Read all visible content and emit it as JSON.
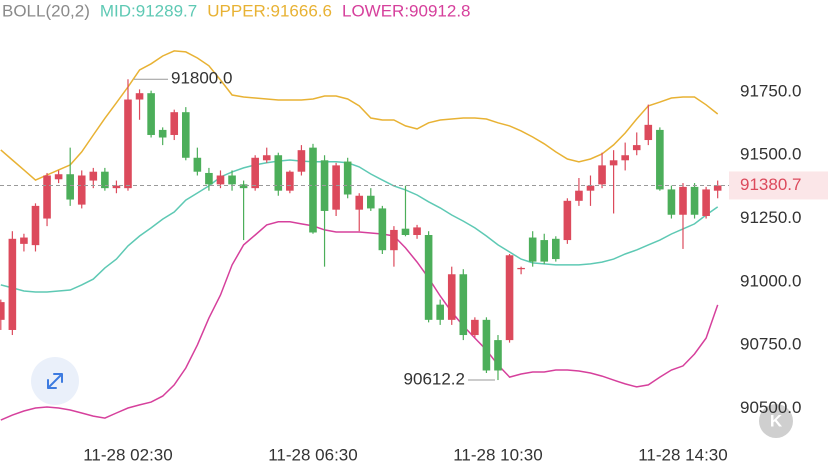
{
  "chart_data": {
    "type": "candlestick",
    "indicator": "BOLL(20,2)",
    "up_color": "#dc4a5c",
    "down_color": "#4cae5a",
    "categories": [
      null,
      null,
      null,
      null,
      null,
      null,
      null,
      null,
      null,
      null,
      null,
      "11-28 02:30",
      null,
      null,
      null,
      null,
      null,
      null,
      null,
      null,
      null,
      null,
      null,
      null,
      null,
      null,
      null,
      "11-28 06:30",
      null,
      null,
      null,
      null,
      null,
      null,
      null,
      null,
      null,
      null,
      null,
      null,
      null,
      null,
      null,
      "11-28 10:30",
      null,
      null,
      null,
      null,
      null,
      null,
      null,
      null,
      null,
      null,
      null,
      null,
      null,
      null,
      null,
      "11-28 14:30",
      null,
      null,
      null
    ],
    "ohlc": [
      [
        90850,
        90930,
        90810,
        90920
      ],
      [
        90810,
        91200,
        90790,
        91170
      ],
      [
        91150,
        91190,
        91120,
        91175
      ],
      [
        91145,
        91310,
        91120,
        91300
      ],
      [
        91250,
        91430,
        91220,
        91420
      ],
      [
        91405,
        91440,
        91390,
        91425
      ],
      [
        91425,
        91530,
        91300,
        91325
      ],
      [
        91305,
        91440,
        91290,
        91420
      ],
      [
        91400,
        91450,
        91370,
        91435
      ],
      [
        91435,
        91450,
        91360,
        91370
      ],
      [
        91370,
        91400,
        91350,
        91380
      ],
      [
        91370,
        91800,
        91360,
        91720
      ],
      [
        91720,
        91760,
        91640,
        91745
      ],
      [
        91745,
        91755,
        91570,
        91580
      ],
      [
        91600,
        91610,
        91540,
        91570
      ],
      [
        91580,
        91680,
        91560,
        91670
      ],
      [
        91670,
        91690,
        91480,
        91490
      ],
      [
        91490,
        91530,
        91420,
        91435
      ],
      [
        91430,
        91450,
        91360,
        91385
      ],
      [
        91385,
        91440,
        91370,
        91420
      ],
      [
        91420,
        91440,
        91360,
        91385
      ],
      [
        91385,
        91400,
        91165,
        91370
      ],
      [
        91370,
        91500,
        91360,
        91490
      ],
      [
        91480,
        91530,
        91470,
        91500
      ],
      [
        91500,
        91510,
        91340,
        91360
      ],
      [
        91360,
        91440,
        91350,
        91435
      ],
      [
        91435,
        91540,
        91420,
        91520
      ],
      [
        91530,
        91545,
        91190,
        91195
      ],
      [
        91480,
        91500,
        91060,
        91280
      ],
      [
        91285,
        91470,
        91260,
        91460
      ],
      [
        91475,
        91490,
        91330,
        91345
      ],
      [
        91285,
        91350,
        91200,
        91340
      ],
      [
        91340,
        91370,
        91280,
        91290
      ],
      [
        91290,
        91300,
        91110,
        91125
      ],
      [
        91125,
        91220,
        91060,
        91205
      ],
      [
        91210,
        91380,
        91180,
        91185
      ],
      [
        91185,
        91225,
        91170,
        91215
      ],
      [
        91185,
        91200,
        90840,
        90850
      ],
      [
        90910,
        90930,
        90830,
        90850
      ],
      [
        90850,
        91060,
        90830,
        91030
      ],
      [
        91030,
        91050,
        90770,
        90790
      ],
      [
        90790,
        90860,
        90780,
        90850
      ],
      [
        90850,
        90860,
        90640,
        90650
      ],
      [
        90770,
        90790,
        90612.2,
        90650
      ],
      [
        90770,
        91110,
        90760,
        91105
      ],
      [
        91050,
        91060,
        91030,
        91055
      ],
      [
        91175,
        91200,
        91060,
        91080
      ],
      [
        91165,
        91190,
        91070,
        91080
      ],
      [
        91170,
        91180,
        91080,
        91090
      ],
      [
        91165,
        91330,
        91150,
        91320
      ],
      [
        91320,
        91410,
        91300,
        91360
      ],
      [
        91360,
        91420,
        91300,
        91380
      ],
      [
        91385,
        91510,
        91370,
        91460
      ],
      [
        91460,
        91520,
        91270,
        91480
      ],
      [
        91480,
        91550,
        91440,
        91500
      ],
      [
        91520,
        91590,
        91500,
        91540
      ],
      [
        91560,
        91700,
        91540,
        91620
      ],
      [
        91600,
        91610,
        91360,
        91365
      ],
      [
        91365,
        91380,
        91250,
        91265
      ],
      [
        91265,
        91390,
        91130,
        91375
      ],
      [
        91375,
        91390,
        91250,
        91265
      ],
      [
        91260,
        91375,
        91250,
        91365
      ],
      [
        91360,
        91400,
        91330,
        91380.7
      ]
    ],
    "series": [
      {
        "name": "MID:91289.7",
        "color": "#5ec9b4",
        "values": [
          90988,
          90976,
          90964,
          90960,
          90960,
          90964,
          90968,
          90988,
          91011,
          91055,
          91090,
          91142,
          91181,
          91213,
          91248,
          91276,
          91323,
          91351,
          91379,
          91414,
          91434,
          91450,
          91462,
          91470,
          91477,
          91481,
          91477,
          91474,
          91474,
          91474,
          91470,
          91454,
          91426,
          91402,
          91379,
          91363,
          91343,
          91316,
          91292,
          91264,
          91240,
          91213,
          91181,
          91146,
          91118,
          91090,
          91075,
          91071,
          91067,
          91067,
          91067,
          91071,
          91078,
          91090,
          91110,
          91126,
          91146,
          91165,
          91189,
          91209,
          91229,
          91264,
          91296
        ]
      },
      {
        "name": "UPPER:91666.6",
        "color": "#e8b234",
        "values": [
          91521,
          91481,
          91442,
          91402,
          91422,
          91442,
          91462,
          91513,
          91580,
          91646,
          91707,
          91770,
          91837,
          91861,
          91892,
          91912,
          91908,
          91884,
          91853,
          91797,
          91738,
          91730,
          91726,
          91722,
          91718,
          91718,
          91718,
          91722,
          91734,
          91734,
          91722,
          91695,
          91647,
          91639,
          91639,
          91616,
          91604,
          91628,
          91639,
          91643,
          91647,
          91647,
          91643,
          91628,
          91616,
          91596,
          91572,
          91545,
          91513,
          91485,
          91474,
          91485,
          91505,
          91541,
          91588,
          91643,
          91695,
          91710,
          91726,
          91730,
          91730,
          91699,
          91663
        ]
      },
      {
        "name": "LOWER:90912.8",
        "color": "#d6409c",
        "values": [
          90454,
          90474,
          90490,
          90502,
          90506,
          90502,
          90494,
          90482,
          90470,
          90462,
          90482,
          90502,
          90514,
          90525,
          90549,
          90593,
          90660,
          90751,
          90857,
          90948,
          91067,
          91146,
          91185,
          91225,
          91237,
          91237,
          91229,
          91221,
          91205,
          91197,
          91197,
          91197,
          91193,
          91189,
          91181,
          91134,
          91078,
          91015,
          90944,
          90881,
          90826,
          90778,
          90731,
          90672,
          90624,
          90636,
          90644,
          90644,
          90652,
          90652,
          90648,
          90640,
          90628,
          90612,
          90597,
          90585,
          90593,
          90624,
          90652,
          90668,
          90715,
          90778,
          90909
        ]
      }
    ],
    "annotations": [
      {
        "index": 11,
        "value": 91800,
        "label": "91800.0"
      },
      {
        "index": 43,
        "value": 90612.2,
        "label": "90612.2"
      }
    ],
    "last_price": 91380.7,
    "ylim": [
      90415,
      92113
    ],
    "yticks": [
      {
        "value": 90500,
        "label": "90500.0"
      },
      {
        "value": 90750,
        "label": "90750.0"
      },
      {
        "value": 91000,
        "label": "91000.0"
      },
      {
        "value": 91250,
        "label": "91250.0"
      },
      {
        "value": 91500,
        "label": "91500.0"
      },
      {
        "value": 91750,
        "label": "91750.0"
      }
    ],
    "logo": "K"
  }
}
